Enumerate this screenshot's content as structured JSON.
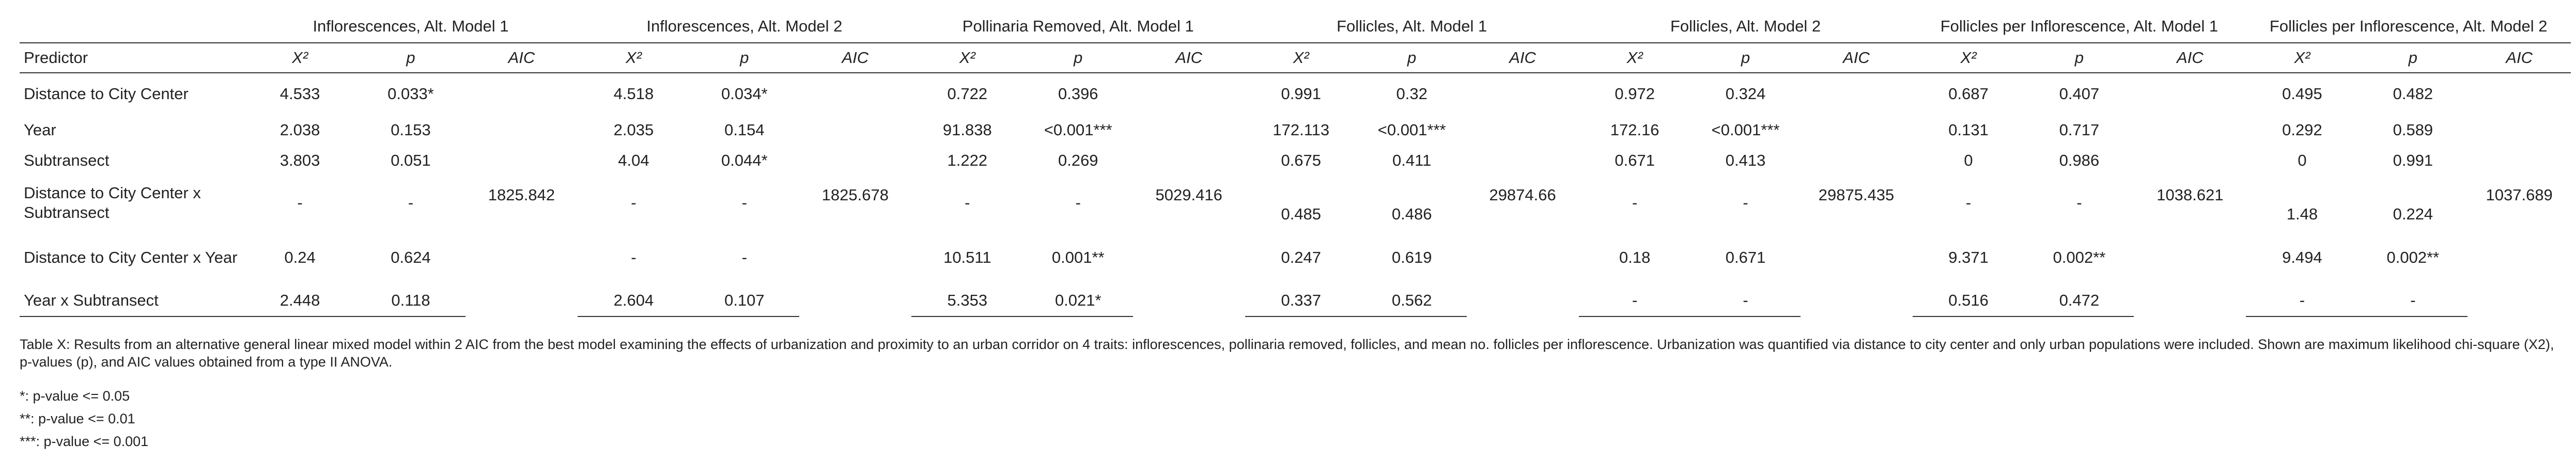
{
  "groups": [
    "Inflorescences, Alt. Model 1",
    "Inflorescences, Alt. Model 2",
    "Pollinaria Removed, Alt. Model 1",
    "Follicles, Alt. Model 1",
    "Follicles, Alt. Model 2",
    "Follicles per Inflorescence, Alt. Model 1",
    "Follicles per Inflorescence, Alt. Model 2"
  ],
  "subheaders": {
    "predictor": "Predictor",
    "x2": "X²",
    "p": "p",
    "aic": "AIC"
  },
  "rows": [
    {
      "predictor": "Distance to City Center",
      "cells": [
        [
          "4.533",
          "0.033*"
        ],
        [
          "4.518",
          "0.034*"
        ],
        [
          "0.722",
          "0.396"
        ],
        [
          "0.991",
          "0.32"
        ],
        [
          "0.972",
          "0.324"
        ],
        [
          "0.687",
          "0.407"
        ],
        [
          "0.495",
          "0.482"
        ]
      ]
    },
    {
      "predictor": "Year",
      "cells": [
        [
          "2.038",
          "0.153"
        ],
        [
          "2.035",
          "0.154"
        ],
        [
          "91.838",
          "<0.001***"
        ],
        [
          "172.113",
          "<0.001***"
        ],
        [
          "172.16",
          "<0.001***"
        ],
        [
          "0.131",
          "0.717"
        ],
        [
          "0.292",
          "0.589"
        ]
      ]
    },
    {
      "predictor": "Subtransect",
      "cells": [
        [
          "3.803",
          "0.051"
        ],
        [
          "4.04",
          "0.044*"
        ],
        [
          "1.222",
          "0.269"
        ],
        [
          "0.675",
          "0.411"
        ],
        [
          "0.671",
          "0.413"
        ],
        [
          "0",
          "0.986"
        ],
        [
          "0",
          "0.991"
        ]
      ]
    },
    {
      "predictor": "Distance to City Center x Subtransect",
      "cells": [
        [
          "-",
          "-"
        ],
        [
          "-",
          "-"
        ],
        [
          "-",
          "-"
        ],
        [
          "0.485",
          "0.486"
        ],
        [
          "-",
          "-"
        ],
        [
          "-",
          "-"
        ],
        [
          "1.48",
          "0.224"
        ]
      ]
    },
    {
      "predictor": "Distance to City Center x Year",
      "cells": [
        [
          "0.24",
          "0.624"
        ],
        [
          "-",
          "-"
        ],
        [
          "10.511",
          "0.001**"
        ],
        [
          "0.247",
          "0.619"
        ],
        [
          "0.18",
          "0.671"
        ],
        [
          "9.371",
          "0.002**"
        ],
        [
          "9.494",
          "0.002**"
        ]
      ]
    },
    {
      "predictor": "Year x Subtransect",
      "cells": [
        [
          "2.448",
          "0.118"
        ],
        [
          "2.604",
          "0.107"
        ],
        [
          "5.353",
          "0.021*"
        ],
        [
          "0.337",
          "0.562"
        ],
        [
          "-",
          "-"
        ],
        [
          "0.516",
          "0.472"
        ],
        [
          "-",
          "-"
        ]
      ]
    }
  ],
  "aic": [
    "1825.842",
    "1825.678",
    "5029.416",
    "29874.66",
    "29875.435",
    "1038.621",
    "1037.689"
  ],
  "caption": "Table X: Results from an alternative general linear mixed model within 2 AIC from the best model examining the effects of urbanization and proximity to an urban corridor on 4 traits: inflorescences, pollinaria removed, follicles, and mean no. follicles per inflorescence. Urbanization was quantified via distance to city center and only urban populations were included. Shown are maximum likelihood chi-square (X2), p-values (p), and AIC values obtained from a type II ANOVA.",
  "notes": [
    "*: p-value <= 0.05",
    "**: p-value <= 0.01",
    "***: p-value <= 0.001"
  ]
}
